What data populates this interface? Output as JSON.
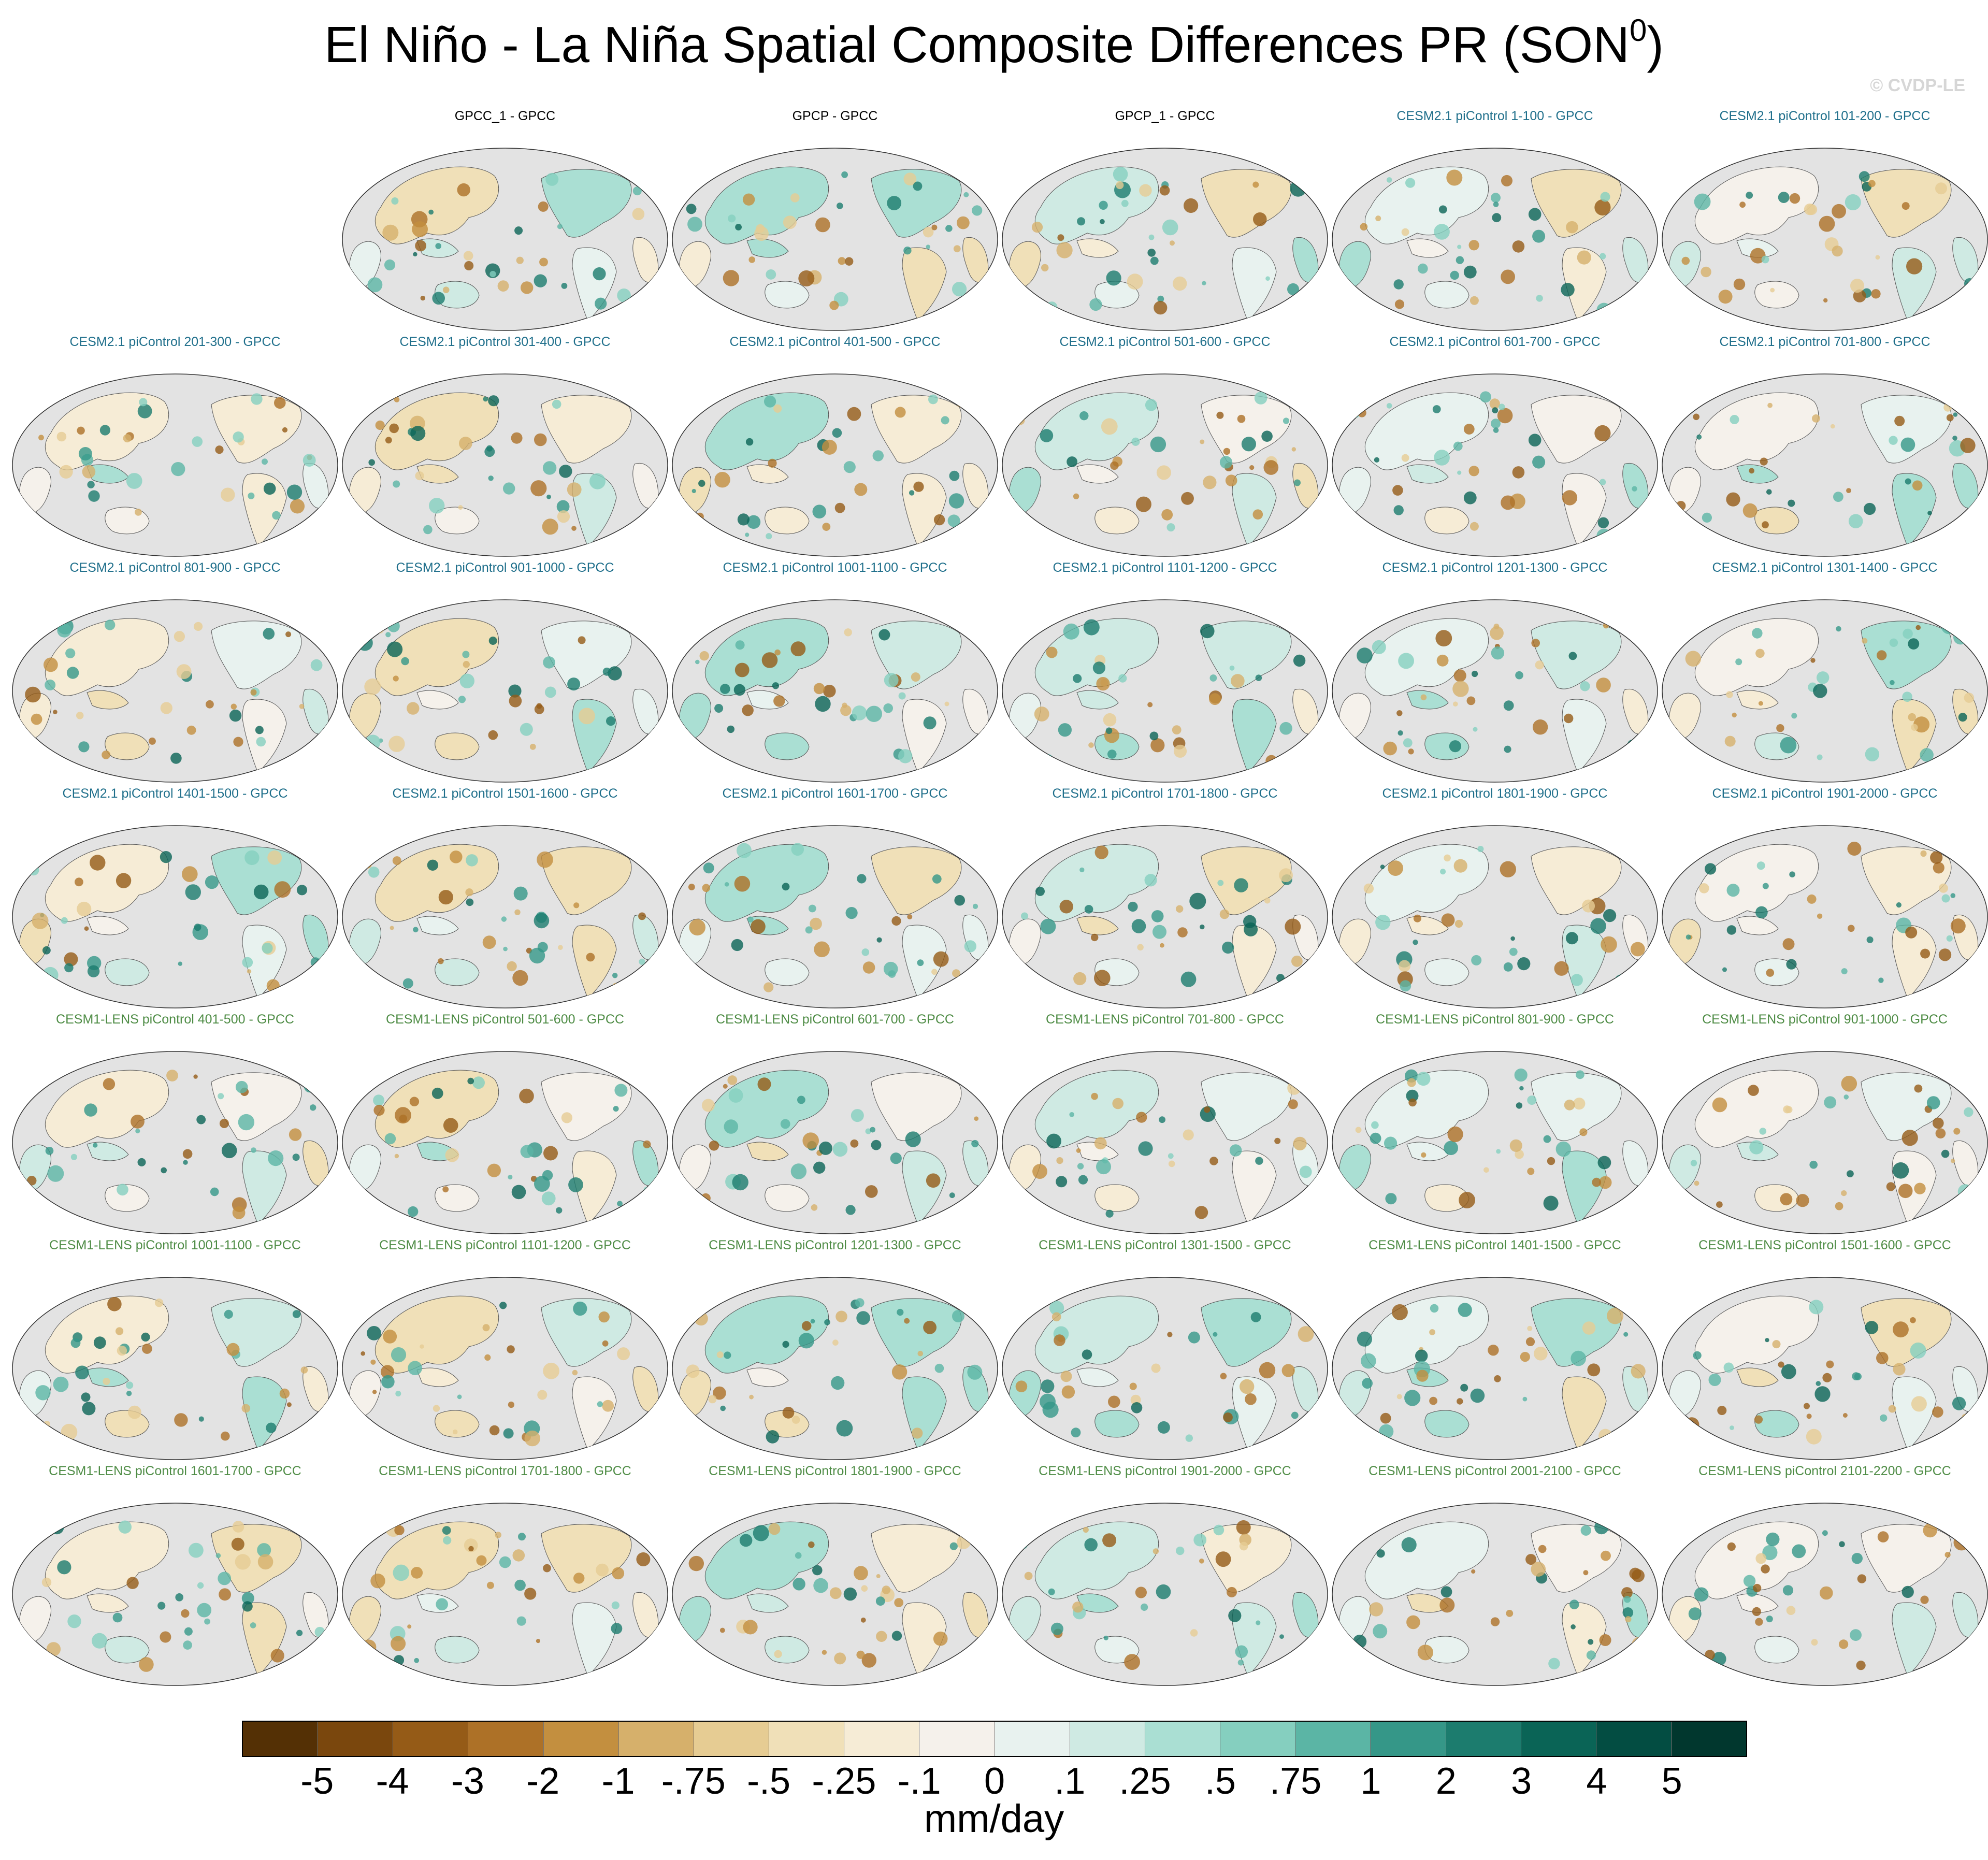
{
  "title": {
    "main": "El Niño - La Niña Spatial Composite Differences PR (SON",
    "superscript": "0",
    "close": ")"
  },
  "credit": "© CVDP-LE",
  "colors": {
    "background": "#ffffff",
    "ocean": "#e3e3e3",
    "label_obs": "#000000",
    "label_cesm2": "#1f6f8b",
    "label_cesm1": "#4e8c45"
  },
  "panels": [
    {
      "label": "GPCC_1 - GPCC",
      "group": "obs"
    },
    {
      "label": "GPCP - GPCC",
      "group": "obs"
    },
    {
      "label": "GPCP_1 - GPCC",
      "group": "obs"
    },
    {
      "label": "CESM2.1 piControl 1-100 - GPCC",
      "group": "c2"
    },
    {
      "label": "CESM2.1 piControl 101-200 - GPCC",
      "group": "c2"
    },
    {
      "label": "CESM2.1 piControl 201-300 - GPCC",
      "group": "c2"
    },
    {
      "label": "CESM2.1 piControl 301-400 - GPCC",
      "group": "c2"
    },
    {
      "label": "CESM2.1 piControl 401-500 - GPCC",
      "group": "c2"
    },
    {
      "label": "CESM2.1 piControl 501-600 - GPCC",
      "group": "c2"
    },
    {
      "label": "CESM2.1 piControl 601-700 - GPCC",
      "group": "c2"
    },
    {
      "label": "CESM2.1 piControl 701-800 - GPCC",
      "group": "c2"
    },
    {
      "label": "CESM2.1 piControl 801-900 - GPCC",
      "group": "c2"
    },
    {
      "label": "CESM2.1 piControl 901-1000 - GPCC",
      "group": "c2"
    },
    {
      "label": "CESM2.1 piControl 1001-1100 - GPCC",
      "group": "c2"
    },
    {
      "label": "CESM2.1 piControl 1101-1200 - GPCC",
      "group": "c2"
    },
    {
      "label": "CESM2.1 piControl 1201-1300 - GPCC",
      "group": "c2"
    },
    {
      "label": "CESM2.1 piControl 1301-1400 - GPCC",
      "group": "c2"
    },
    {
      "label": "CESM2.1 piControl 1401-1500 - GPCC",
      "group": "c2"
    },
    {
      "label": "CESM2.1 piControl 1501-1600 - GPCC",
      "group": "c2"
    },
    {
      "label": "CESM2.1 piControl 1601-1700 - GPCC",
      "group": "c2"
    },
    {
      "label": "CESM2.1 piControl 1701-1800 - GPCC",
      "group": "c2"
    },
    {
      "label": "CESM2.1 piControl 1801-1900 - GPCC",
      "group": "c2"
    },
    {
      "label": "CESM2.1 piControl 1901-2000 - GPCC",
      "group": "c2"
    },
    {
      "label": "CESM1-LENS piControl 401-500 - GPCC",
      "group": "c1"
    },
    {
      "label": "CESM1-LENS piControl 501-600 - GPCC",
      "group": "c1"
    },
    {
      "label": "CESM1-LENS piControl 601-700 - GPCC",
      "group": "c1"
    },
    {
      "label": "CESM1-LENS piControl 701-800 - GPCC",
      "group": "c1"
    },
    {
      "label": "CESM1-LENS piControl 801-900 - GPCC",
      "group": "c1"
    },
    {
      "label": "CESM1-LENS piControl 901-1000 - GPCC",
      "group": "c1"
    },
    {
      "label": "CESM1-LENS piControl 1001-1100 - GPCC",
      "group": "c1"
    },
    {
      "label": "CESM1-LENS piControl 1101-1200 - GPCC",
      "group": "c1"
    },
    {
      "label": "CESM1-LENS piControl 1201-1300 - GPCC",
      "group": "c1"
    },
    {
      "label": "CESM1-LENS piControl 1301-1500 - GPCC",
      "group": "c1"
    },
    {
      "label": "CESM1-LENS piControl 1401-1500 - GPCC",
      "group": "c1"
    },
    {
      "label": "CESM1-LENS piControl 1501-1600 - GPCC",
      "group": "c1"
    },
    {
      "label": "CESM1-LENS piControl 1601-1700 - GPCC",
      "group": "c1"
    },
    {
      "label": "CESM1-LENS piControl 1701-1800 - GPCC",
      "group": "c1"
    },
    {
      "label": "CESM1-LENS piControl 1801-1900 - GPCC",
      "group": "c1"
    },
    {
      "label": "CESM1-LENS piControl 1901-2000 - GPCC",
      "group": "c1"
    },
    {
      "label": "CESM1-LENS piControl 2001-2100 - GPCC",
      "group": "c1"
    },
    {
      "label": "CESM1-LENS piControl 2101-2200 - GPCC",
      "group": "c1"
    }
  ],
  "colorbar": {
    "colors": [
      "#543005",
      "#7a470d",
      "#955b17",
      "#ad7127",
      "#c38f3f",
      "#d6b06b",
      "#e6cc93",
      "#f0e0b8",
      "#f6ecd6",
      "#f5f1eb",
      "#e8f2ef",
      "#cfeae3",
      "#aadfd3",
      "#85cfbf",
      "#5bb5a5",
      "#359788",
      "#1c7c6e",
      "#0a6456",
      "#034d42",
      "#01372e"
    ],
    "ticks": [
      "-5",
      "-4",
      "-3",
      "-2",
      "-1",
      "-.75",
      "-.5",
      "-.25",
      "-.1",
      "0",
      ".1",
      ".25",
      ".5",
      ".75",
      "1",
      "2",
      "3",
      "4",
      "5"
    ],
    "units": "mm/day"
  }
}
